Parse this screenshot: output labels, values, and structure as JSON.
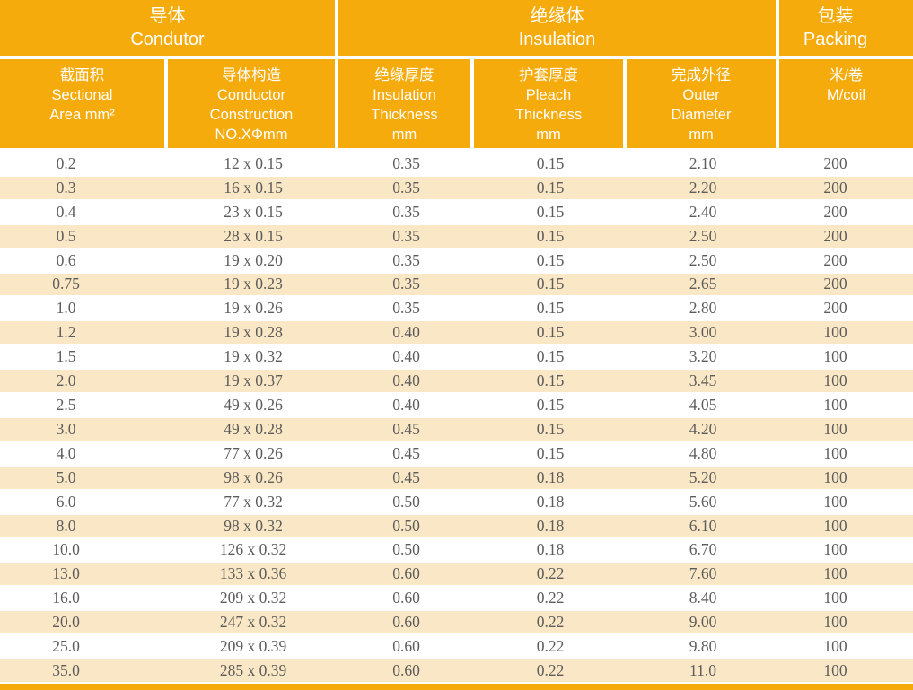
{
  "colors": {
    "header_orange": "#F6AB0D",
    "stripe_cream": "#FAE7C5",
    "header_text": "#FFFFFF",
    "data_text": "#5C5C5C"
  },
  "table": {
    "group_headers": [
      {
        "zh": "导体",
        "en": "Condutor"
      },
      {
        "zh": "绝缘体",
        "en": "Insulation"
      },
      {
        "zh": "包装",
        "en": "Packing"
      }
    ],
    "column_headers": [
      {
        "lines": [
          "截面积",
          "Sectional",
          "Area mm²"
        ]
      },
      {
        "lines": [
          "导体构造",
          "Conductor",
          "Construction",
          "NO.XΦmm"
        ]
      },
      {
        "lines": [
          "绝缘厚度",
          "Insulation",
          "Thickness",
          "mm"
        ]
      },
      {
        "lines": [
          "护套厚度",
          "Pleach",
          "Thickness",
          "mm"
        ]
      },
      {
        "lines": [
          "完成外径",
          "Outer",
          "Diameter",
          "mm"
        ]
      },
      {
        "lines": [
          "米/卷",
          "M/coil"
        ]
      }
    ],
    "rows": [
      [
        "0.2",
        "12 x 0.15",
        "0.35",
        "0.15",
        "2.10",
        "200"
      ],
      [
        "0.3",
        "16 x 0.15",
        "0.35",
        "0.15",
        "2.20",
        "200"
      ],
      [
        "0.4",
        "23 x 0.15",
        "0.35",
        "0.15",
        "2.40",
        "200"
      ],
      [
        "0.5",
        "28 x 0.15",
        "0.35",
        "0.15",
        "2.50",
        "200"
      ],
      [
        "0.6",
        "19 x 0.20",
        "0.35",
        "0.15",
        "2.50",
        "200"
      ],
      [
        "0.75",
        "19 x 0.23",
        "0.35",
        "0.15",
        "2.65",
        "200"
      ],
      [
        "1.0",
        "19 x 0.26",
        "0.35",
        "0.15",
        "2.80",
        "200"
      ],
      [
        "1.2",
        "19 x 0.28",
        "0.40",
        "0.15",
        "3.00",
        "100"
      ],
      [
        "1.5",
        "19 x 0.32",
        "0.40",
        "0.15",
        "3.20",
        "100"
      ],
      [
        "2.0",
        "19 x 0.37",
        "0.40",
        "0.15",
        "3.45",
        "100"
      ],
      [
        "2.5",
        "49 x 0.26",
        "0.40",
        "0.15",
        "4.05",
        "100"
      ],
      [
        "3.0",
        "49 x 0.28",
        "0.45",
        "0.15",
        "4.20",
        "100"
      ],
      [
        "4.0",
        "77 x 0.26",
        "0.45",
        "0.15",
        "4.80",
        "100"
      ],
      [
        "5.0",
        "98 x 0.26",
        "0.45",
        "0.18",
        "5.20",
        "100"
      ],
      [
        "6.0",
        "77 x 0.32",
        "0.50",
        "0.18",
        "5.60",
        "100"
      ],
      [
        "8.0",
        "98 x 0.32",
        "0.50",
        "0.18",
        "6.10",
        "100"
      ],
      [
        "10.0",
        "126 x 0.32",
        "0.50",
        "0.18",
        "6.70",
        "100"
      ],
      [
        "13.0",
        "133 x 0.36",
        "0.60",
        "0.22",
        "7.60",
        "100"
      ],
      [
        "16.0",
        "209 x 0.32",
        "0.60",
        "0.22",
        "8.40",
        "100"
      ],
      [
        "20.0",
        "247 x 0.32",
        "0.60",
        "0.22",
        "9.00",
        "100"
      ],
      [
        "25.0",
        "209 x 0.39",
        "0.60",
        "0.22",
        "9.80",
        "100"
      ],
      [
        "35.0",
        "285 x 0.39",
        "0.60",
        "0.22",
        "11.0",
        "100"
      ]
    ]
  }
}
